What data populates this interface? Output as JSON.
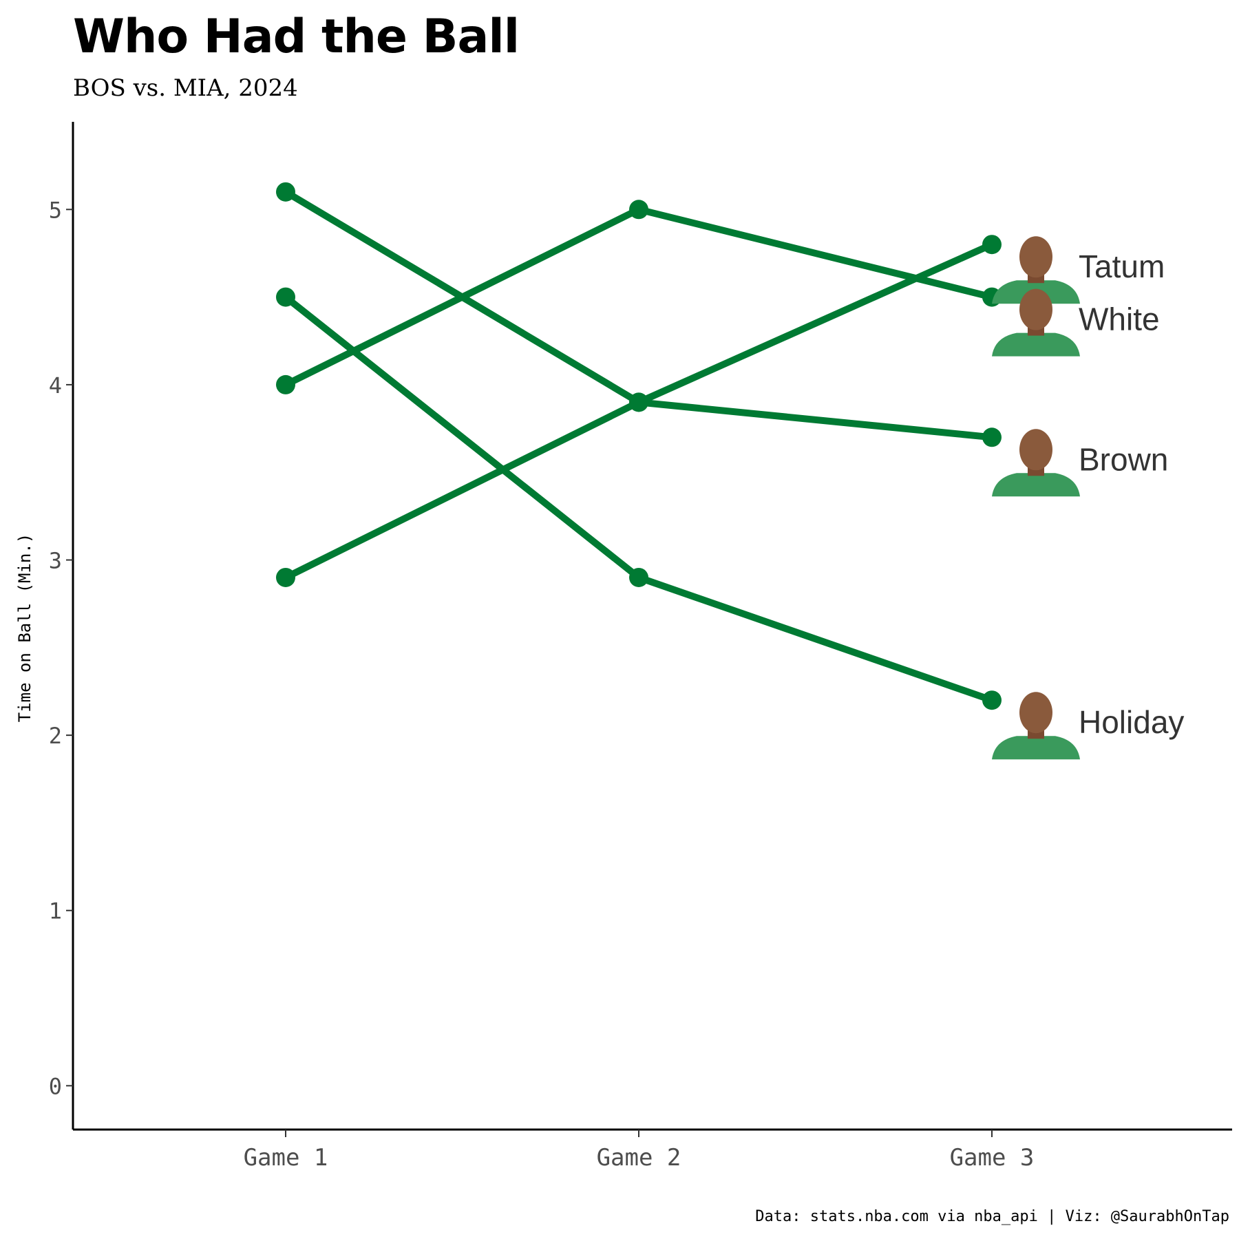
{
  "chart_data": {
    "type": "line",
    "title": "Who Had the Ball",
    "subtitle": "BOS vs. MIA, 2024",
    "caption": "Data: stats.nba.com via nba_api | Viz: @SaurabhOnTap",
    "ylabel": "Time on Ball (Min.)",
    "xlabel": "",
    "categories": [
      "Game 1",
      "Game 2",
      "Game 3"
    ],
    "ylim": [
      -0.25,
      5.5
    ],
    "yticks": [
      0,
      1,
      2,
      3,
      4,
      5
    ],
    "grid": false,
    "legend": "none",
    "line_color": "#007A33",
    "series": [
      {
        "name": "Tatum",
        "values": [
          2.9,
          3.9,
          4.8
        ]
      },
      {
        "name": "White",
        "values": [
          4.0,
          5.0,
          4.5
        ]
      },
      {
        "name": "Brown",
        "values": [
          5.1,
          3.9,
          3.7
        ]
      },
      {
        "name": "Holiday",
        "values": [
          4.5,
          2.9,
          2.2
        ]
      }
    ]
  }
}
